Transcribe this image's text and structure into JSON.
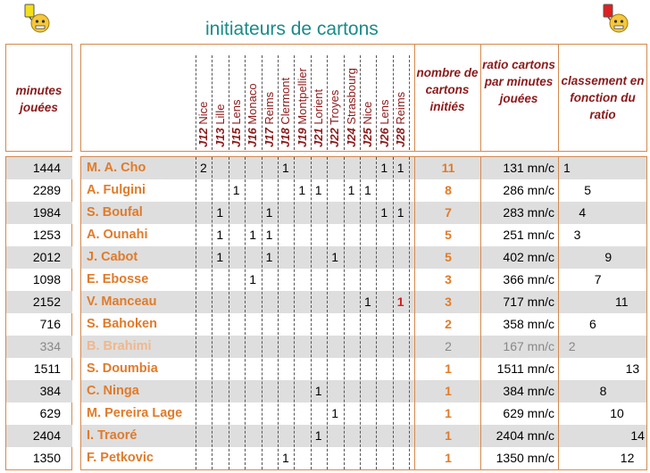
{
  "title": "initiateurs de cartons",
  "icons": {
    "left": "yellow-card-smiley-icon",
    "right": "red-card-smiley-icon"
  },
  "colors": {
    "accent_orange": "#e07b2a",
    "header_red": "#8b1a1a",
    "title_teal": "#1a8a8a",
    "border": "#d4894e",
    "row_stripe": "#dedede",
    "red_card": "#d21f1f"
  },
  "headers": {
    "minutes": "minutes jouées",
    "nombre": "nombre de cartons initiés",
    "ratio": "ratio cartons par minutes jouées",
    "classement": "classement en fonction du ratio"
  },
  "matches": [
    {
      "code": "J12",
      "team": "Nice"
    },
    {
      "code": "J13",
      "team": "Lille"
    },
    {
      "code": "J15",
      "team": "Lens"
    },
    {
      "code": "J16",
      "team": "Monaco"
    },
    {
      "code": "J17",
      "team": "Reims"
    },
    {
      "code": "J18",
      "team": "Clermont"
    },
    {
      "code": "J19",
      "team": "Montpellier"
    },
    {
      "code": "J21",
      "team": "Lorient"
    },
    {
      "code": "J22",
      "team": "Troyes"
    },
    {
      "code": "J24",
      "team": "Strasbourg"
    },
    {
      "code": "J25",
      "team": "Nice"
    },
    {
      "code": "J26",
      "team": "Lens"
    },
    {
      "code": "J28",
      "team": "Reims"
    }
  ],
  "rows": [
    {
      "minutes": "1444",
      "name": "M. A. Cho",
      "cards": [
        "2",
        "",
        "",
        "",
        "",
        "1",
        "",
        "",
        "",
        "",
        "",
        "1",
        "1"
      ],
      "total": "11",
      "ratio": "131 mn/c",
      "rank": "1",
      "muted": false
    },
    {
      "minutes": "2289",
      "name": "A. Fulgini",
      "cards": [
        "",
        "",
        "1",
        "",
        "",
        "",
        "1",
        "1",
        "",
        "1",
        "1",
        "",
        ""
      ],
      "total": "8",
      "ratio": "286 mn/c",
      "rank": "5",
      "muted": false
    },
    {
      "minutes": "1984",
      "name": "S. Boufal",
      "cards": [
        "",
        "1",
        "",
        "",
        "1",
        "",
        "",
        "",
        "",
        "",
        "",
        "1",
        "1"
      ],
      "total": "7",
      "ratio": "283 mn/c",
      "rank": "4",
      "muted": false
    },
    {
      "minutes": "1253",
      "name": "A. Ounahi",
      "cards": [
        "",
        "1",
        "",
        "1",
        "1",
        "",
        "",
        "",
        "",
        "",
        "",
        "",
        ""
      ],
      "total": "5",
      "ratio": "251 mn/c",
      "rank": "3",
      "muted": false
    },
    {
      "minutes": "2012",
      "name": "J. Cabot",
      "cards": [
        "",
        "1",
        "",
        "",
        "1",
        "",
        "",
        "",
        "1",
        "",
        "",
        "",
        ""
      ],
      "total": "5",
      "ratio": "402 mn/c",
      "rank": "9",
      "muted": false
    },
    {
      "minutes": "1098",
      "name": "E. Ebosse",
      "cards": [
        "",
        "",
        "",
        "1",
        "",
        "",
        "",
        "",
        "",
        "",
        "",
        "",
        ""
      ],
      "total": "3",
      "ratio": "366 mn/c",
      "rank": "7",
      "muted": false
    },
    {
      "minutes": "2152",
      "name": "V. Manceau",
      "cards": [
        "",
        "",
        "",
        "",
        "",
        "",
        "",
        "",
        "",
        "",
        "1",
        "",
        "1"
      ],
      "total": "3",
      "ratio": "717 mn/c",
      "rank": "11",
      "muted": false
    },
    {
      "minutes": "716",
      "name": "S. Bahoken",
      "cards": [
        "",
        "",
        "",
        "",
        "",
        "",
        "",
        "",
        "",
        "",
        "",
        "",
        ""
      ],
      "total": "2",
      "ratio": "358 mn/c",
      "rank": "6",
      "muted": false
    },
    {
      "minutes": "334",
      "name": "B. Brahimi",
      "cards": [
        "",
        "",
        "",
        "",
        "",
        "",
        "",
        "",
        "",
        "",
        "",
        "",
        ""
      ],
      "total": "2",
      "ratio": "167 mn/c",
      "rank": "2",
      "muted": true
    },
    {
      "minutes": "1511",
      "name": "S. Doumbia",
      "cards": [
        "",
        "",
        "",
        "",
        "",
        "",
        "",
        "",
        "",
        "",
        "",
        "",
        ""
      ],
      "total": "1",
      "ratio": "1511 mn/c",
      "rank": "13",
      "muted": false
    },
    {
      "minutes": "384",
      "name": "C. Ninga",
      "cards": [
        "",
        "",
        "",
        "",
        "",
        "",
        "",
        "1",
        "",
        "",
        "",
        "",
        ""
      ],
      "total": "1",
      "ratio": "384 mn/c",
      "rank": "8",
      "muted": false
    },
    {
      "minutes": "629",
      "name": "M. Pereira Lage",
      "cards": [
        "",
        "",
        "",
        "",
        "",
        "",
        "",
        "",
        "1",
        "",
        "",
        "",
        ""
      ],
      "total": "1",
      "ratio": "629 mn/c",
      "rank": "10",
      "muted": false
    },
    {
      "minutes": "2404",
      "name": "I. Traoré",
      "cards": [
        "",
        "",
        "",
        "",
        "",
        "",
        "",
        "1",
        "",
        "",
        "",
        "",
        ""
      ],
      "total": "1",
      "ratio": "2404 mn/c",
      "rank": "14",
      "muted": false
    },
    {
      "minutes": "1350",
      "name": "F. Petkovic",
      "cards": [
        "",
        "",
        "",
        "",
        "",
        "1",
        "",
        "",
        "",
        "",
        "",
        "",
        ""
      ],
      "total": "1",
      "ratio": "1350 mn/c",
      "rank": "12",
      "muted": false
    }
  ]
}
